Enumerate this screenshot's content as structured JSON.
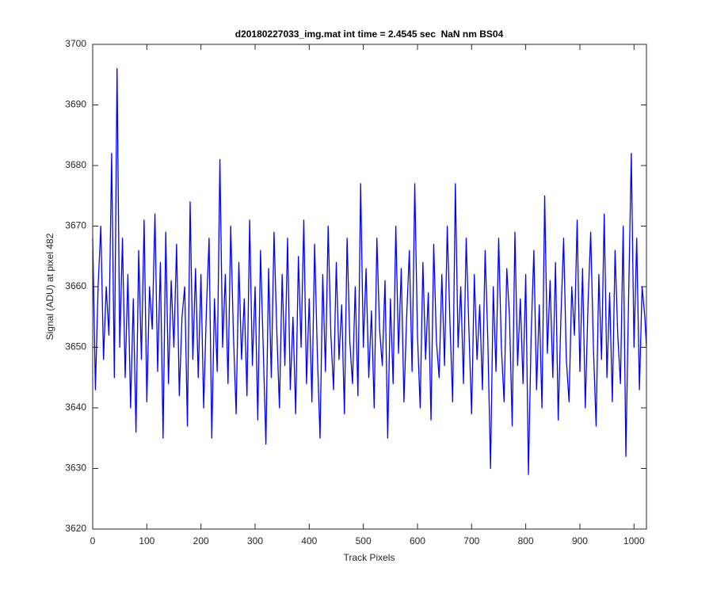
{
  "chart_data": {
    "type": "line",
    "title": "d20180227033_img.mat int time = 2.4545 sec  NaN nm BS04",
    "xlabel": "Track Pixels",
    "ylabel": "Signal (ADU) at pixel 482",
    "x": [
      0,
      5,
      10,
      15,
      20,
      25,
      30,
      35,
      40,
      45,
      50,
      55,
      60,
      65,
      70,
      75,
      80,
      85,
      90,
      95,
      100,
      105,
      110,
      115,
      120,
      125,
      130,
      135,
      140,
      145,
      150,
      155,
      160,
      165,
      170,
      175,
      180,
      185,
      190,
      195,
      200,
      205,
      210,
      215,
      220,
      225,
      230,
      235,
      240,
      245,
      250,
      255,
      260,
      265,
      270,
      275,
      280,
      285,
      290,
      295,
      300,
      305,
      310,
      315,
      320,
      325,
      330,
      335,
      340,
      345,
      350,
      355,
      360,
      365,
      370,
      375,
      380,
      385,
      390,
      395,
      400,
      405,
      410,
      415,
      420,
      425,
      430,
      435,
      440,
      445,
      450,
      455,
      460,
      465,
      470,
      475,
      480,
      485,
      490,
      495,
      500,
      505,
      510,
      515,
      520,
      525,
      530,
      535,
      540,
      545,
      550,
      555,
      560,
      565,
      570,
      575,
      580,
      585,
      590,
      595,
      600,
      605,
      610,
      615,
      620,
      625,
      630,
      635,
      640,
      645,
      650,
      655,
      660,
      665,
      670,
      675,
      680,
      685,
      690,
      695,
      700,
      705,
      710,
      715,
      720,
      725,
      730,
      735,
      740,
      745,
      750,
      755,
      760,
      765,
      770,
      775,
      780,
      785,
      790,
      795,
      800,
      805,
      810,
      815,
      820,
      825,
      830,
      835,
      840,
      845,
      850,
      855,
      860,
      865,
      870,
      875,
      880,
      885,
      890,
      895,
      900,
      905,
      910,
      915,
      920,
      925,
      930,
      935,
      940,
      945,
      950,
      955,
      960,
      965,
      970,
      975,
      980,
      985,
      990,
      995,
      1000,
      1005,
      1010,
      1015,
      1020,
      1023
    ],
    "values": [
      3668,
      3643,
      3660,
      3670,
      3648,
      3660,
      3652,
      3682,
      3645,
      3696,
      3650,
      3668,
      3645,
      3662,
      3640,
      3658,
      3636,
      3666,
      3648,
      3671,
      3641,
      3660,
      3653,
      3672,
      3646,
      3664,
      3635,
      3669,
      3644,
      3661,
      3650,
      3667,
      3642,
      3655,
      3660,
      3637,
      3674,
      3648,
      3663,
      3645,
      3662,
      3640,
      3656,
      3668,
      3635,
      3658,
      3646,
      3681,
      3650,
      3662,
      3644,
      3670,
      3652,
      3639,
      3664,
      3648,
      3658,
      3642,
      3671,
      3647,
      3660,
      3638,
      3666,
      3650,
      3634,
      3663,
      3645,
      3669,
      3653,
      3640,
      3662,
      3647,
      3668,
      3643,
      3655,
      3639,
      3665,
      3650,
      3671,
      3644,
      3658,
      3641,
      3667,
      3649,
      3635,
      3662,
      3646,
      3670,
      3652,
      3643,
      3664,
      3648,
      3657,
      3639,
      3668,
      3651,
      3644,
      3660,
      3642,
      3677,
      3650,
      3663,
      3645,
      3656,
      3640,
      3668,
      3653,
      3647,
      3661,
      3635,
      3658,
      3644,
      3670,
      3649,
      3663,
      3641,
      3655,
      3666,
      3646,
      3677,
      3652,
      3640,
      3664,
      3648,
      3659,
      3638,
      3667,
      3651,
      3645,
      3662,
      3647,
      3670,
      3654,
      3641,
      3677,
      3650,
      3660,
      3644,
      3668,
      3653,
      3639,
      3662,
      3648,
      3657,
      3643,
      3666,
      3651,
      3630,
      3660,
      3646,
      3668,
      3650,
      3641,
      3663,
      3655,
      3637,
      3669,
      3647,
      3658,
      3644,
      3662,
      3629,
      3652,
      3666,
      3643,
      3657,
      3640,
      3675,
      3649,
      3661,
      3645,
      3664,
      3638,
      3655,
      3668,
      3648,
      3641,
      3660,
      3652,
      3671,
      3646,
      3663,
      3640,
      3657,
      3669,
      3650,
      3637,
      3662,
      3648,
      3672,
      3645,
      3659,
      3641,
      3666,
      3652,
      3644,
      3670,
      3632,
      3658,
      3682,
      3650,
      3668,
      3643,
      3660,
      3655,
      3650
    ],
    "color": "#0000ff",
    "xlim": [
      0,
      1023
    ],
    "ylim": [
      3620,
      3700
    ],
    "xticks": [
      0,
      100,
      200,
      300,
      400,
      500,
      600,
      700,
      800,
      900,
      1000
    ],
    "yticks": [
      3620,
      3630,
      3640,
      3650,
      3660,
      3670,
      3680,
      3690,
      3700
    ]
  }
}
